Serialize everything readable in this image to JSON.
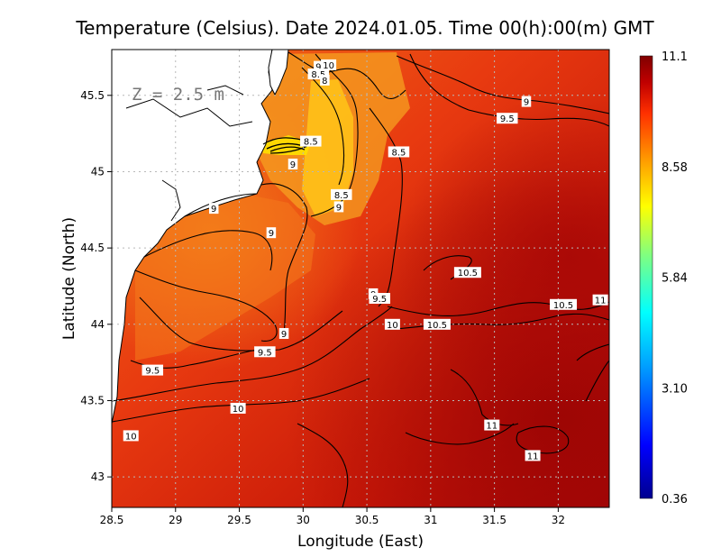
{
  "chart_data": {
    "type": "heatmap",
    "title": "Temperature (Celsius). Date 2024.01.05. Time 00(h):00(m)  GMT",
    "xlabel": "Longitude (East)",
    "ylabel": "Latitude (North)",
    "xlim": [
      28.5,
      32.4
    ],
    "ylim": [
      42.8,
      45.8
    ],
    "x_ticks": [
      "28.5",
      "29",
      "29.5",
      "30",
      "30.5",
      "31",
      "31.5",
      "32"
    ],
    "y_ticks": [
      "43",
      "43.5",
      "44",
      "44.5",
      "45",
      "45.5"
    ],
    "depth_label": "Z = 2.5 m",
    "grid": true,
    "colorbar": {
      "min": 0.36,
      "max": 11.1,
      "ticks": [
        "11.1",
        "8.58",
        "5.84",
        "3.10",
        "0.36"
      ],
      "colors": [
        "#00008f",
        "#0000ff",
        "#00a0ff",
        "#00ffff",
        "#80ff80",
        "#ffff00",
        "#ffa000",
        "#ff3000",
        "#c00000",
        "#800000"
      ]
    },
    "contour_labels": [
      {
        "text": "10",
        "lon": 30.2,
        "lat": 45.7
      },
      {
        "text": "9",
        "lon": 30.12,
        "lat": 45.69
      },
      {
        "text": "8.5",
        "lon": 30.12,
        "lat": 45.64
      },
      {
        "text": "8",
        "lon": 30.17,
        "lat": 45.6
      },
      {
        "text": "9",
        "lon": 31.75,
        "lat": 45.46
      },
      {
        "text": "9.5",
        "lon": 31.6,
        "lat": 45.35
      },
      {
        "text": "8.5",
        "lon": 30.06,
        "lat": 45.2
      },
      {
        "text": "8.5",
        "lon": 30.75,
        "lat": 45.13
      },
      {
        "text": "9",
        "lon": 29.92,
        "lat": 45.05
      },
      {
        "text": "8.5",
        "lon": 30.3,
        "lat": 44.85
      },
      {
        "text": "9",
        "lon": 30.28,
        "lat": 44.77
      },
      {
        "text": "9",
        "lon": 29.3,
        "lat": 44.76
      },
      {
        "text": "9",
        "lon": 29.75,
        "lat": 44.6
      },
      {
        "text": "10.5",
        "lon": 31.29,
        "lat": 44.34
      },
      {
        "text": "9",
        "lon": 30.55,
        "lat": 44.2
      },
      {
        "text": "9.5",
        "lon": 30.6,
        "lat": 44.17
      },
      {
        "text": "10.5",
        "lon": 32.04,
        "lat": 44.13
      },
      {
        "text": "11",
        "lon": 32.33,
        "lat": 44.16
      },
      {
        "text": "10",
        "lon": 30.7,
        "lat": 44.0
      },
      {
        "text": "10.5",
        "lon": 31.05,
        "lat": 44.0
      },
      {
        "text": "9",
        "lon": 29.85,
        "lat": 43.94
      },
      {
        "text": "9.5",
        "lon": 29.7,
        "lat": 43.82
      },
      {
        "text": "9.5",
        "lon": 28.82,
        "lat": 43.7
      },
      {
        "text": "10",
        "lon": 29.49,
        "lat": 43.45
      },
      {
        "text": "11",
        "lon": 31.48,
        "lat": 43.34
      },
      {
        "text": "10",
        "lon": 28.65,
        "lat": 43.27
      },
      {
        "text": "11",
        "lon": 31.8,
        "lat": 43.14
      }
    ]
  }
}
